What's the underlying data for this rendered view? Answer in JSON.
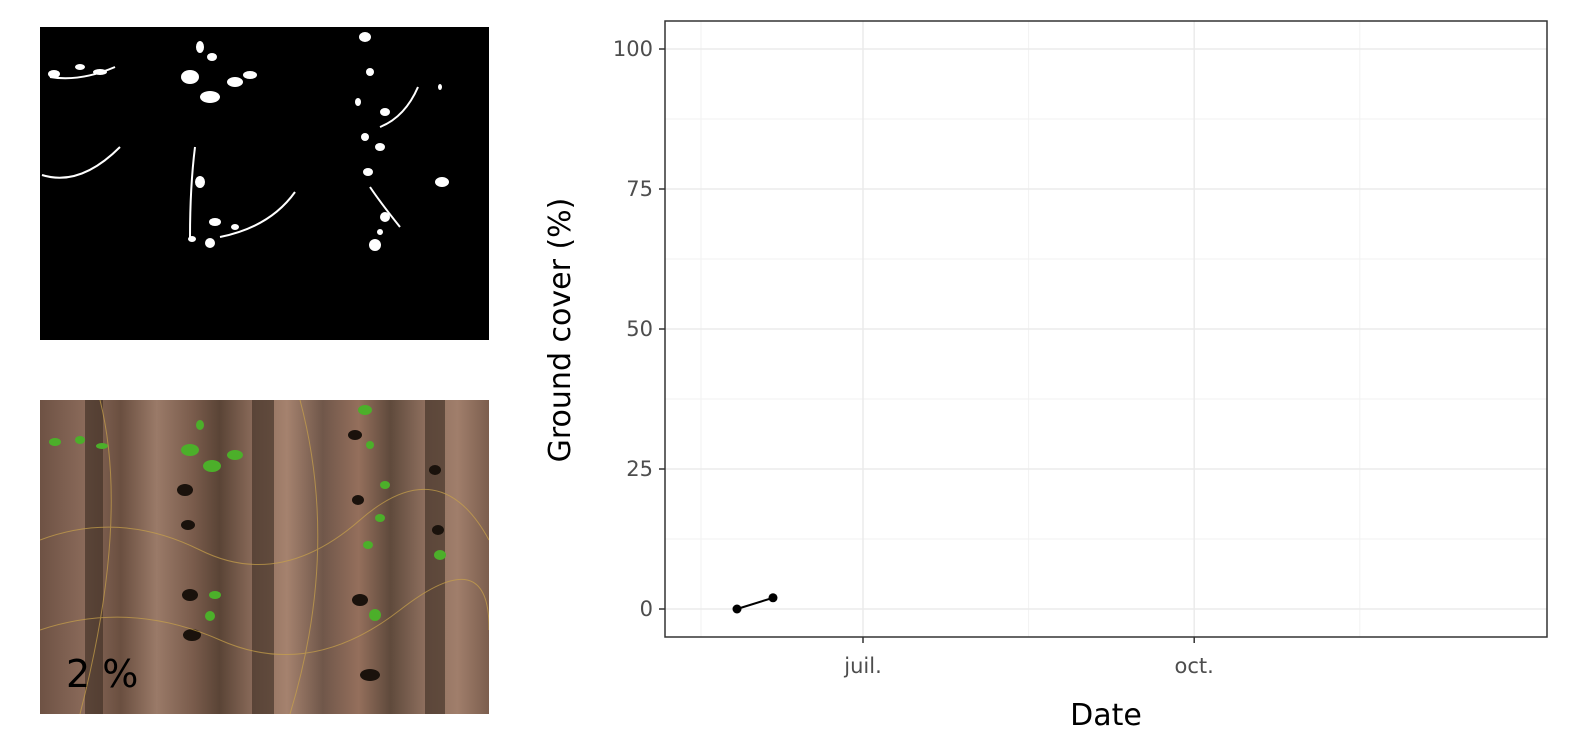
{
  "photo_label": "2 %",
  "chart_data": {
    "type": "line",
    "title": "",
    "xlabel": "Date",
    "ylabel": "Ground cover (%)",
    "ylim": [
      -5,
      105
    ],
    "xlim": [
      "2019-05-07",
      "2020-01-07"
    ],
    "y_ticks": [
      0,
      25,
      50,
      75,
      100
    ],
    "x_ticks": [
      {
        "date": "2019-07-01",
        "label": "juil."
      },
      {
        "date": "2019-10-01",
        "label": "oct."
      }
    ],
    "x_minor_ticks": [
      "2019-05-17",
      "2019-08-16",
      "2019-11-16"
    ],
    "grid": true,
    "series": [
      {
        "color": "#000000",
        "x": [
          "2019-05-27",
          "2019-06-06"
        ],
        "y": [
          0,
          2
        ]
      }
    ]
  }
}
